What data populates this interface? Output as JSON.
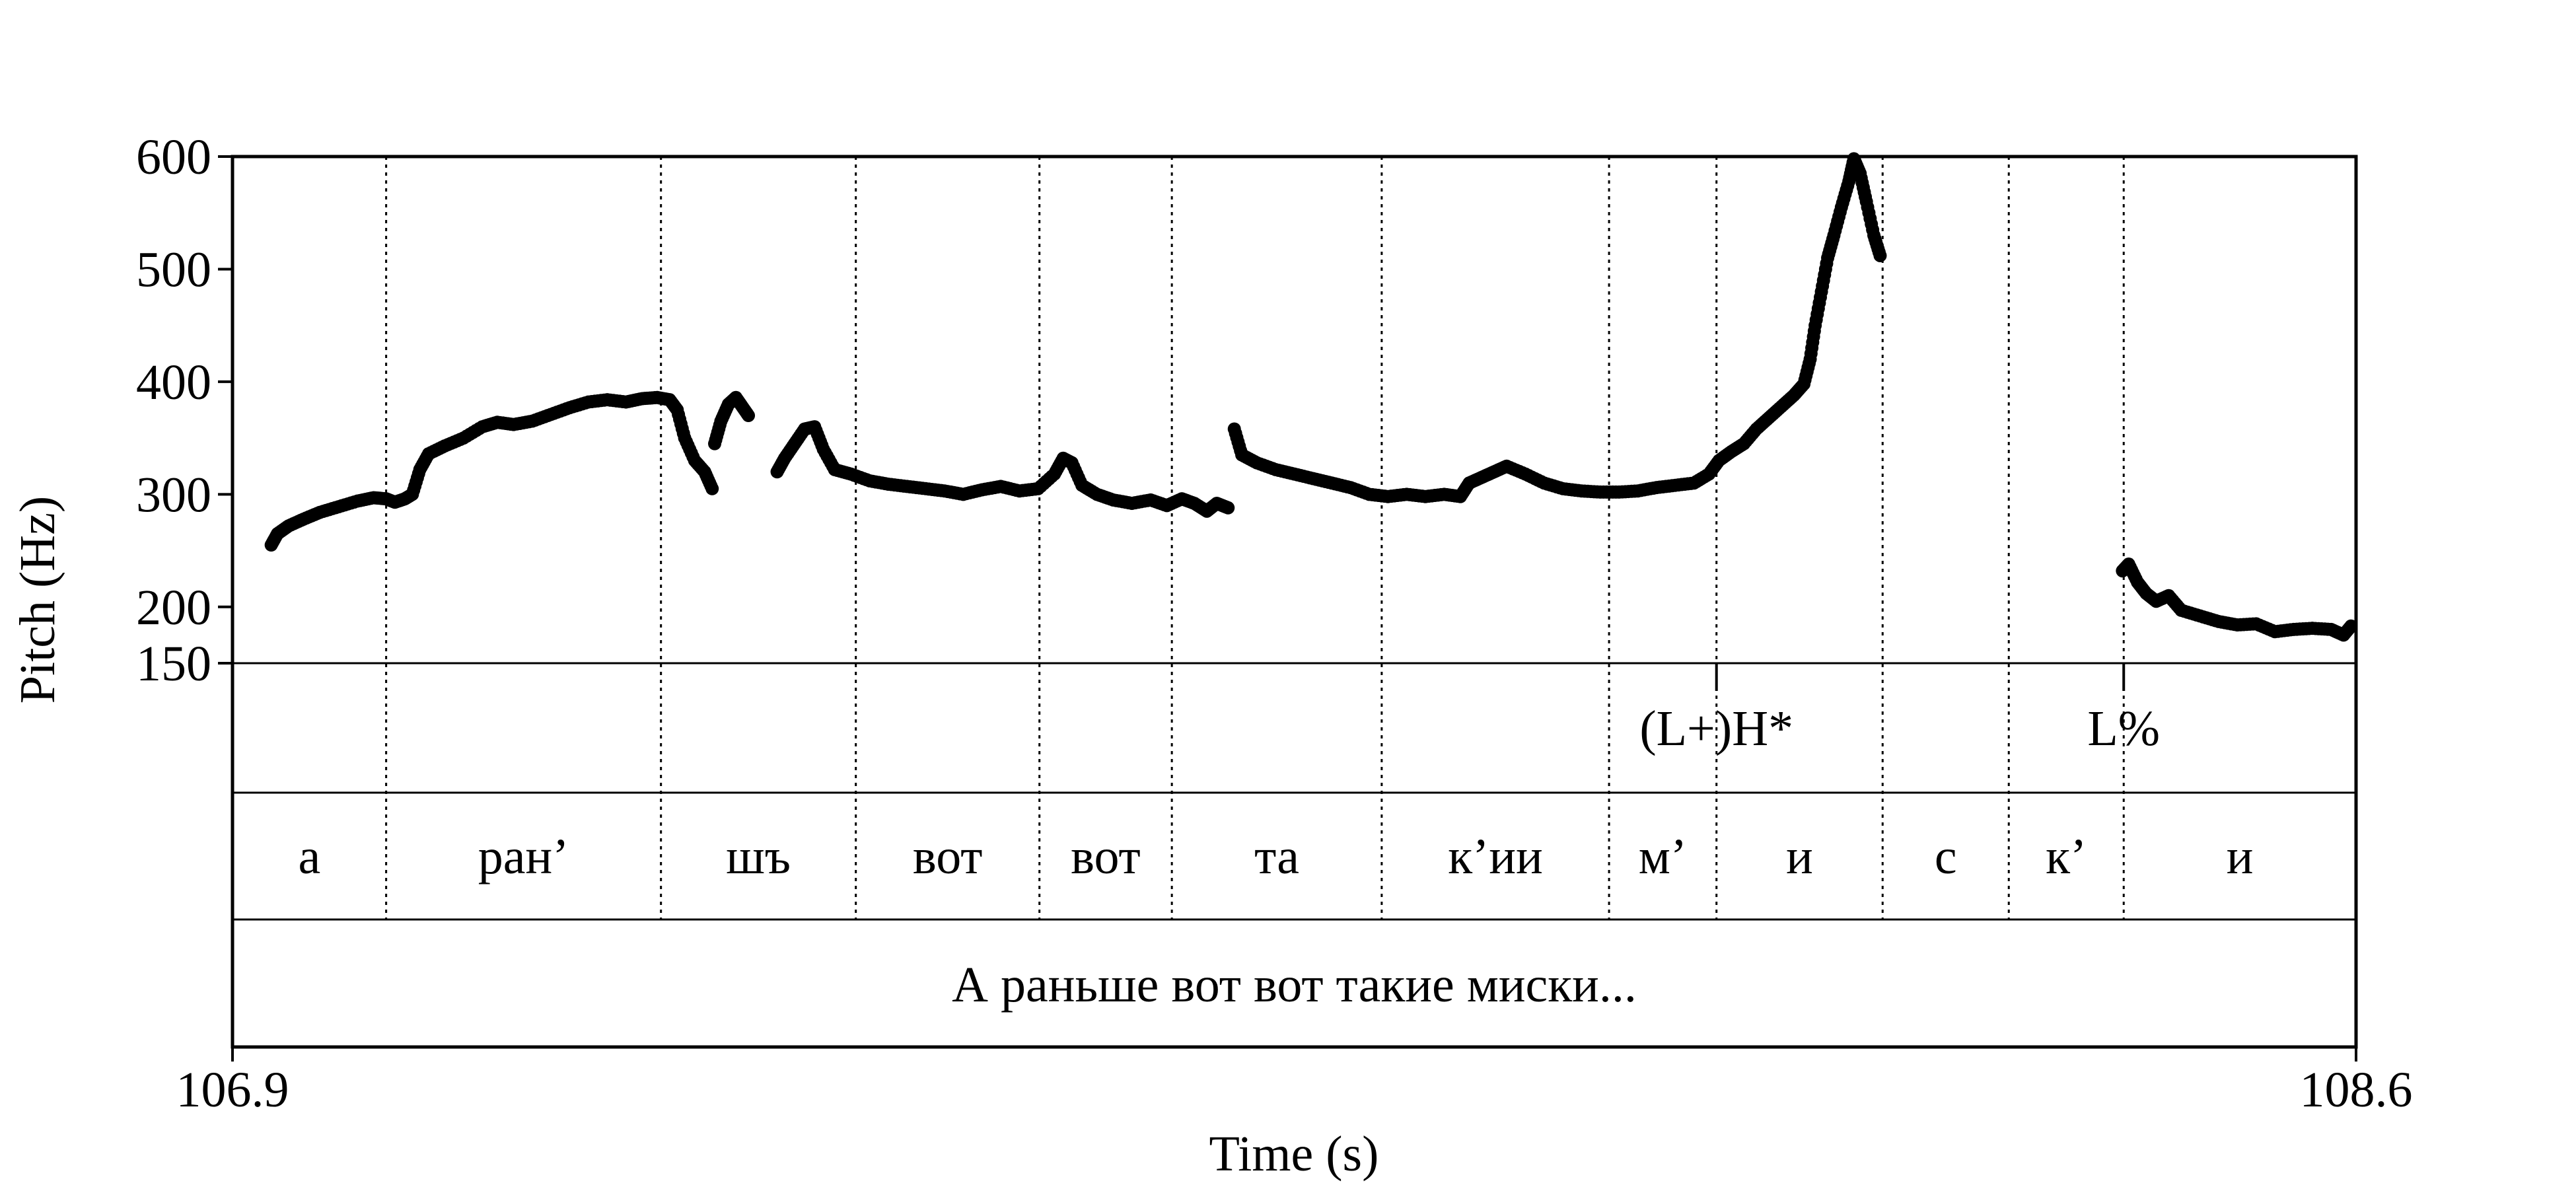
{
  "chart_data": {
    "type": "scatter",
    "title": "",
    "xlabel": "Time (s)",
    "ylabel": "Pitch (Hz)",
    "xlim": [
      106.9,
      108.6
    ],
    "ylim": [
      150,
      600
    ],
    "x_ticks": [
      "106.9",
      "108.6"
    ],
    "y_ticks": [
      "600",
      "500",
      "400",
      "300",
      "200",
      "150"
    ],
    "boundaries": [
      107.023,
      107.243,
      107.399,
      107.546,
      107.652,
      107.82,
      108.002,
      108.088,
      108.221,
      108.322,
      108.414
    ],
    "tones": [
      {
        "label": "(L+)H*",
        "time": 108.088
      },
      {
        "label": "L%",
        "time": 108.414
      }
    ],
    "syllables": [
      "а",
      "ран’",
      "шъ",
      "вот",
      "вот",
      "та",
      "к’ии",
      "м’",
      "и",
      "с",
      "к’",
      "и"
    ],
    "sentence": "А раньше вот вот такие миски...",
    "series": [
      {
        "segments": [
          [
            [
              106.931,
              255
            ],
            [
              106.936,
              265
            ],
            [
              106.945,
              272
            ],
            [
              106.957,
              278
            ],
            [
              106.97,
              284
            ],
            [
              106.985,
              289
            ],
            [
              107.0,
              294
            ],
            [
              107.013,
              297
            ],
            [
              107.023,
              296
            ],
            [
              107.03,
              293
            ],
            [
              107.038,
              296
            ],
            [
              107.044,
              300
            ],
            [
              107.05,
              322
            ],
            [
              107.057,
              336
            ],
            [
              107.07,
              343
            ],
            [
              107.085,
              350
            ],
            [
              107.1,
              360
            ],
            [
              107.112,
              364
            ],
            [
              107.125,
              362
            ],
            [
              107.14,
              365
            ],
            [
              107.155,
              371
            ],
            [
              107.17,
              377
            ],
            [
              107.185,
              382
            ],
            [
              107.2,
              384
            ],
            [
              107.215,
              382
            ],
            [
              107.228,
              385
            ],
            [
              107.24,
              386
            ],
            [
              107.25,
              384
            ],
            [
              107.256,
              375
            ],
            [
              107.262,
              350
            ],
            [
              107.27,
              330
            ],
            [
              107.278,
              320
            ],
            [
              107.284,
              305
            ]
          ],
          [
            [
              107.286,
              345
            ],
            [
              107.291,
              365
            ],
            [
              107.297,
              380
            ],
            [
              107.303,
              386
            ],
            [
              107.308,
              378
            ],
            [
              107.313,
              370
            ]
          ],
          [
            [
              107.336,
              320
            ],
            [
              107.342,
              332
            ],
            [
              107.35,
              345
            ],
            [
              107.358,
              358
            ],
            [
              107.366,
              360
            ],
            [
              107.373,
              340
            ],
            [
              107.382,
              322
            ],
            [
              107.395,
              318
            ],
            [
              107.41,
              312
            ],
            [
              107.425,
              309
            ],
            [
              107.44,
              307
            ],
            [
              107.455,
              305
            ],
            [
              107.47,
              303
            ],
            [
              107.485,
              300
            ],
            [
              107.5,
              304
            ],
            [
              107.515,
              307
            ],
            [
              107.53,
              303
            ],
            [
              107.545,
              305
            ],
            [
              107.558,
              318
            ],
            [
              107.565,
              332
            ],
            [
              107.572,
              328
            ],
            [
              107.58,
              308
            ],
            [
              107.592,
              300
            ],
            [
              107.605,
              295
            ],
            [
              107.62,
              292
            ],
            [
              107.635,
              295
            ],
            [
              107.648,
              290
            ],
            [
              107.66,
              296
            ],
            [
              107.67,
              292
            ],
            [
              107.68,
              285
            ],
            [
              107.688,
              292
            ],
            [
              107.697,
              288
            ]
          ],
          [
            [
              107.702,
              358
            ],
            [
              107.708,
              335
            ],
            [
              107.72,
              328
            ],
            [
              107.735,
              322
            ],
            [
              107.75,
              318
            ],
            [
              107.765,
              314
            ],
            [
              107.78,
              310
            ],
            [
              107.795,
              306
            ],
            [
              107.81,
              300
            ],
            [
              107.825,
              298
            ],
            [
              107.84,
              300
            ],
            [
              107.855,
              298
            ],
            [
              107.87,
              300
            ],
            [
              107.883,
              298
            ],
            [
              107.89,
              310
            ],
            [
              107.9,
              315
            ],
            [
              107.91,
              320
            ],
            [
              107.92,
              325
            ],
            [
              107.935,
              318
            ],
            [
              107.95,
              310
            ],
            [
              107.965,
              305
            ],
            [
              107.98,
              303
            ],
            [
              107.995,
              302
            ],
            [
              108.01,
              302
            ],
            [
              108.025,
              303
            ],
            [
              108.04,
              306
            ],
            [
              108.055,
              308
            ],
            [
              108.07,
              310
            ],
            [
              108.082,
              318
            ],
            [
              108.09,
              330
            ],
            [
              108.1,
              338
            ],
            [
              108.11,
              345
            ],
            [
              108.12,
              358
            ],
            [
              108.13,
              368
            ],
            [
              108.14,
              378
            ],
            [
              108.15,
              388
            ],
            [
              108.158,
              398
            ],
            [
              108.163,
              420
            ],
            [
              108.167,
              450
            ],
            [
              108.172,
              480
            ],
            [
              108.177,
              510
            ],
            [
              108.182,
              530
            ],
            [
              108.188,
              555
            ],
            [
              108.194,
              578
            ],
            [
              108.198,
              598
            ],
            [
              108.203,
              585
            ],
            [
              108.208,
              560
            ],
            [
              108.214,
              530
            ],
            [
              108.219,
              512
            ]
          ],
          [
            [
              108.413,
              232
            ],
            [
              108.418,
              238
            ],
            [
              108.425,
              222
            ],
            [
              108.432,
              212
            ],
            [
              108.44,
              205
            ],
            [
              108.45,
              210
            ],
            [
              108.46,
              197
            ],
            [
              108.475,
              192
            ],
            [
              108.49,
              187
            ],
            [
              108.505,
              184
            ],
            [
              108.52,
              185
            ],
            [
              108.535,
              178
            ],
            [
              108.55,
              180
            ],
            [
              108.565,
              181
            ],
            [
              108.58,
              180
            ],
            [
              108.59,
              175
            ],
            [
              108.596,
              183
            ]
          ]
        ]
      }
    ]
  }
}
